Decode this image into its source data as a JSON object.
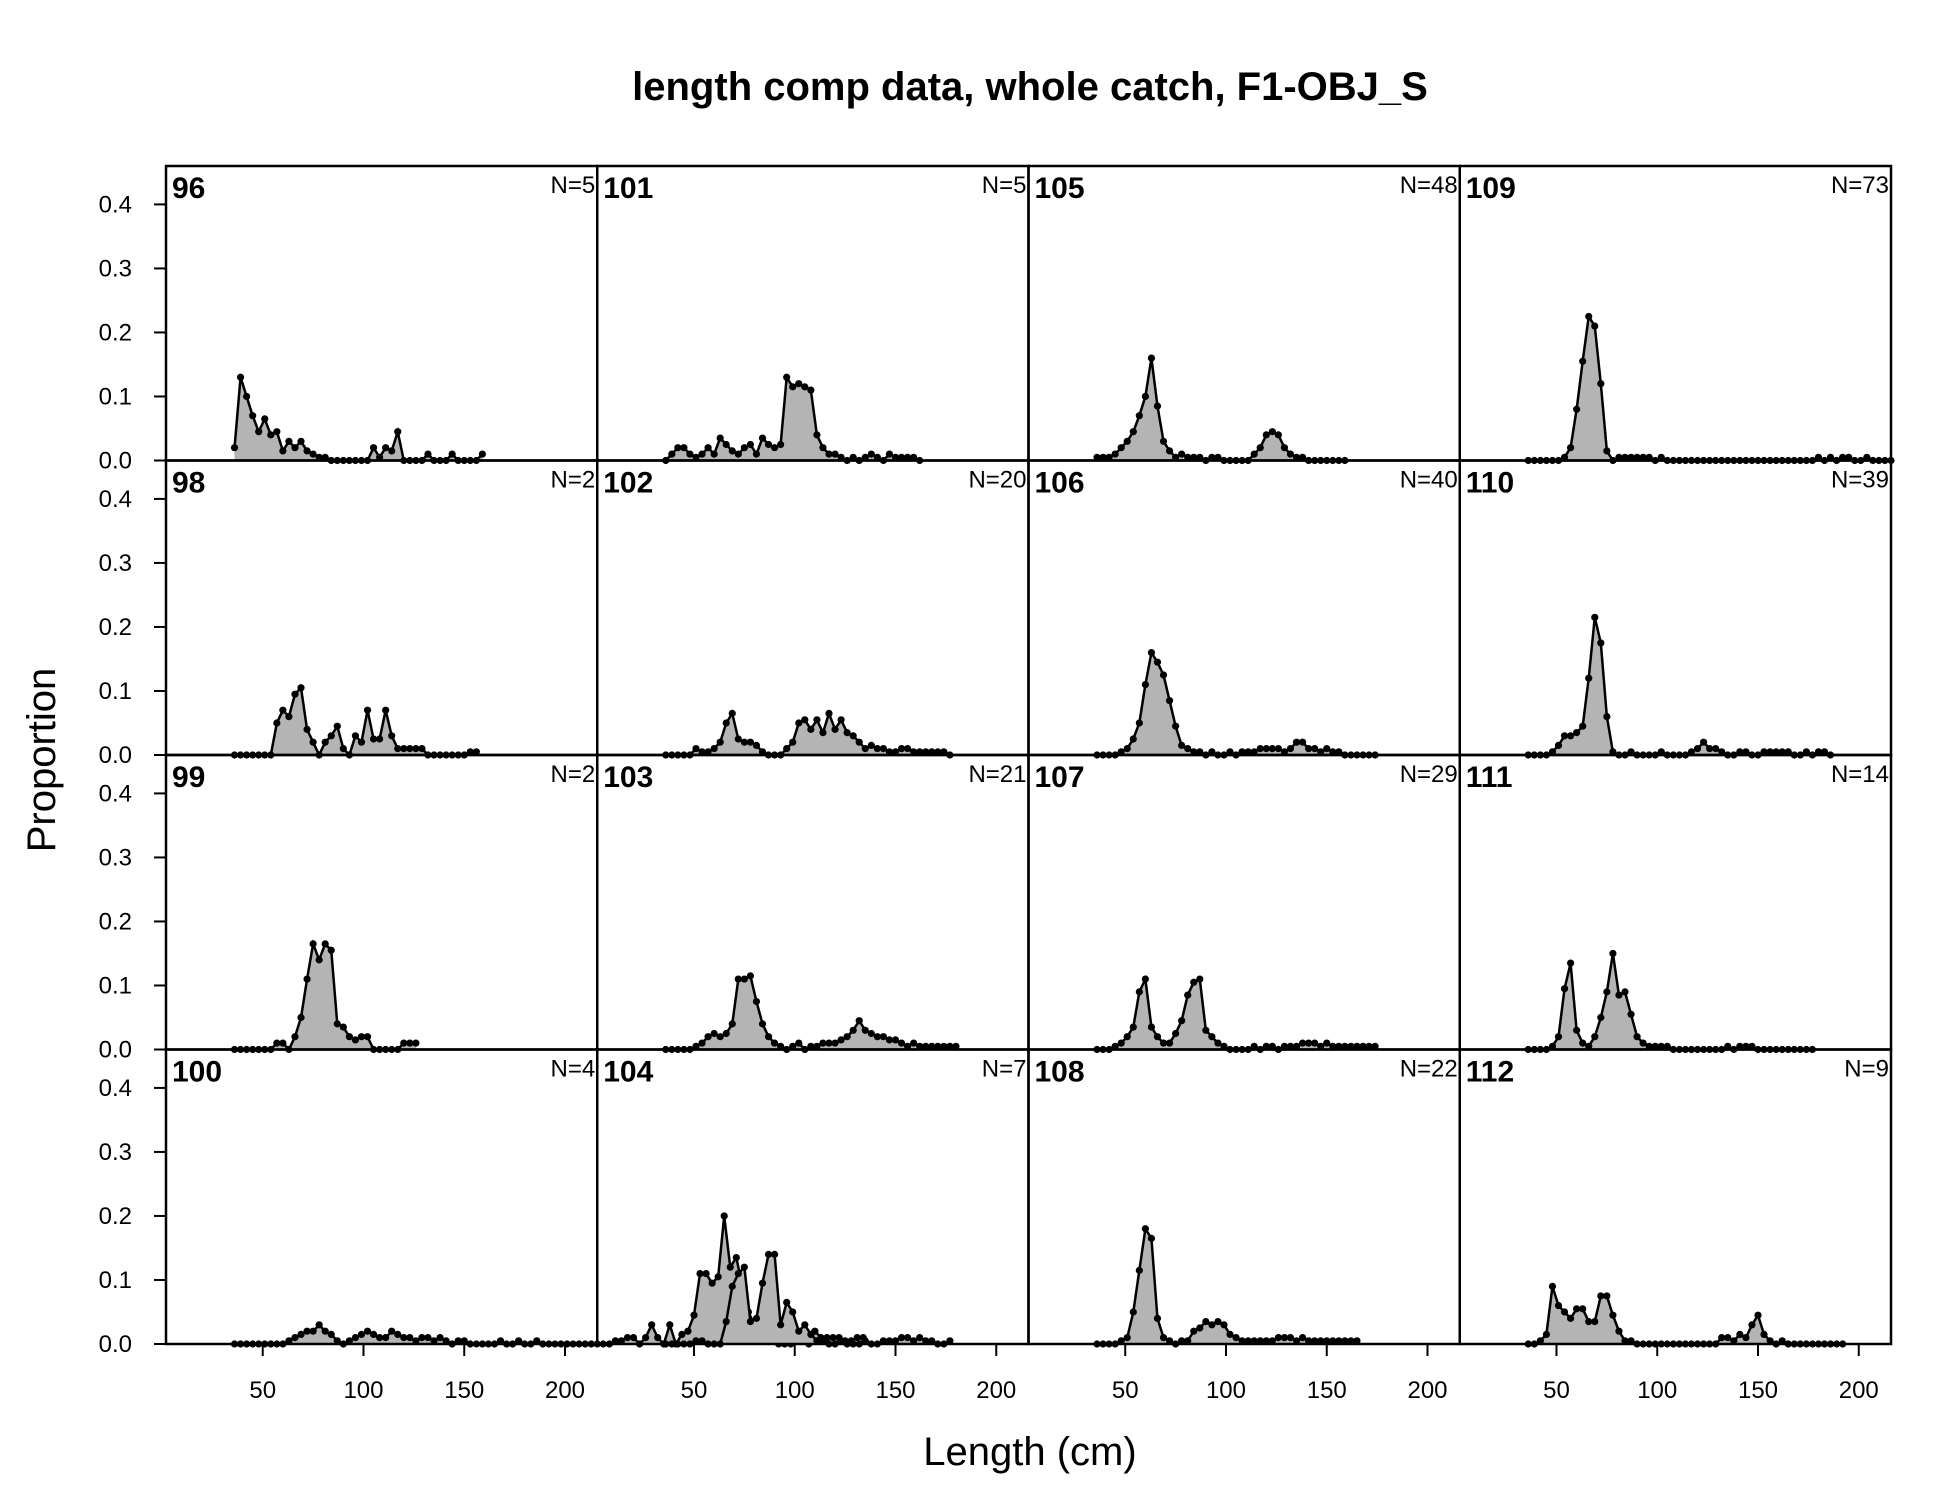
{
  "chart_data": {
    "type": "area",
    "title": "length comp data, whole catch, F1-OBJ_S",
    "xlabel": "Length (cm)",
    "ylabel": "Proportion",
    "xticks": [
      50,
      100,
      150,
      200
    ],
    "yticks": [
      "0.0",
      "0.1",
      "0.2",
      "0.3",
      "0.4"
    ],
    "xlim": [
      2,
      216
    ],
    "ylim": [
      0,
      0.46
    ],
    "bin_start": 36,
    "bin_width": 3,
    "grid": false,
    "panels": [
      {
        "label": "96",
        "n": "N=5",
        "values": [
          0.02,
          0.13,
          0.1,
          0.07,
          0.045,
          0.065,
          0.04,
          0.045,
          0.015,
          0.03,
          0.02,
          0.03,
          0.015,
          0.01,
          0.005,
          0.005,
          0,
          0,
          0,
          0,
          0,
          0,
          0,
          0.02,
          0.005,
          0.02,
          0.015,
          0.045,
          0,
          0,
          0,
          0,
          0.01,
          0,
          0,
          0,
          0.01,
          0,
          0,
          0,
          0,
          0.01
        ]
      },
      {
        "label": "98",
        "n": "N=2",
        "values": [
          0,
          0,
          0,
          0,
          0,
          0,
          0,
          0.05,
          0.07,
          0.06,
          0.095,
          0.105,
          0.04,
          0.02,
          0,
          0.02,
          0.03,
          0.045,
          0.01,
          0,
          0.03,
          0.02,
          0.07,
          0.025,
          0.025,
          0.07,
          0.03,
          0.01,
          0.01,
          0.01,
          0.01,
          0.01,
          0,
          0,
          0,
          0,
          0,
          0,
          0,
          0.005,
          0.005
        ]
      },
      {
        "label": "99",
        "n": "N=2",
        "values": [
          0,
          0,
          0,
          0,
          0,
          0,
          0,
          0.01,
          0.01,
          0,
          0.02,
          0.05,
          0.11,
          0.165,
          0.14,
          0.165,
          0.155,
          0.04,
          0.035,
          0.02,
          0.015,
          0.02,
          0.02,
          0,
          0,
          0,
          0,
          0,
          0.01,
          0.01,
          0.01
        ]
      },
      {
        "label": "100",
        "n": "N=4",
        "values": [
          0,
          0,
          0,
          0,
          0,
          0,
          0,
          0,
          0,
          0.005,
          0.01,
          0.015,
          0.02,
          0.02,
          0.03,
          0.02,
          0.015,
          0.005,
          0,
          0.005,
          0.01,
          0.015,
          0.02,
          0.015,
          0.01,
          0.01,
          0.02,
          0.015,
          0.01,
          0.01,
          0.005,
          0.01,
          0.01,
          0.005,
          0.01,
          0.005,
          0,
          0.005,
          0.005,
          0,
          0,
          0,
          0,
          0,
          0.005,
          0,
          0,
          0.005,
          0,
          0,
          0.005,
          0,
          0,
          0,
          0,
          0,
          0,
          0,
          0,
          0,
          0,
          0,
          0,
          0.005,
          0.005,
          0.01,
          0.01,
          0,
          0.01,
          0.03,
          0.01,
          0,
          0.03,
          0,
          0.015,
          0.02,
          0.045,
          0.11,
          0.11,
          0.095,
          0.105,
          0.2,
          0.12,
          0.135,
          0.09,
          0.05,
          0.03,
          0.01,
          0.02,
          0.005,
          0,
          0,
          0,
          0.005,
          0.005,
          0,
          0.02,
          0.01,
          0.01,
          0.01,
          0.01,
          0.005,
          0.005,
          0.01,
          0.01
        ]
      },
      {
        "label": "101",
        "n": "N=5",
        "values": [
          0,
          0.01,
          0.02,
          0.02,
          0.01,
          0.005,
          0.01,
          0.02,
          0.01,
          0.035,
          0.025,
          0.015,
          0.01,
          0.02,
          0.025,
          0.01,
          0.035,
          0.025,
          0.02,
          0.025,
          0.13,
          0.115,
          0.12,
          0.115,
          0.11,
          0.04,
          0.02,
          0.01,
          0.01,
          0.005,
          0,
          0.005,
          0,
          0.005,
          0.01,
          0.005,
          0,
          0.01,
          0.005,
          0.005,
          0.005,
          0.005,
          0
        ]
      },
      {
        "label": "102",
        "n": "N=20",
        "values": [
          0,
          0,
          0,
          0,
          0,
          0.01,
          0.005,
          0.005,
          0.01,
          0.02,
          0.05,
          0.065,
          0.025,
          0.02,
          0.02,
          0.015,
          0.005,
          0,
          0,
          0,
          0.01,
          0.02,
          0.05,
          0.055,
          0.04,
          0.055,
          0.035,
          0.065,
          0.04,
          0.055,
          0.035,
          0.03,
          0.02,
          0.01,
          0.015,
          0.01,
          0.01,
          0.005,
          0.005,
          0.01,
          0.01,
          0.005,
          0.005,
          0.005,
          0.005,
          0.005,
          0.005,
          0
        ]
      },
      {
        "label": "103",
        "n": "N=21",
        "values": [
          0,
          0,
          0,
          0,
          0,
          0.005,
          0.01,
          0.02,
          0.025,
          0.02,
          0.025,
          0.04,
          0.11,
          0.11,
          0.115,
          0.075,
          0.04,
          0.02,
          0.01,
          0.005,
          0,
          0.005,
          0.01,
          0,
          0.005,
          0.005,
          0.01,
          0.01,
          0.01,
          0.015,
          0.02,
          0.03,
          0.045,
          0.03,
          0.025,
          0.02,
          0.02,
          0.015,
          0.015,
          0.01,
          0.005,
          0.01,
          0.005,
          0.005,
          0.005,
          0.005,
          0.005,
          0.005,
          0.005
        ]
      },
      {
        "label": "104",
        "n": "N=7",
        "values": [
          0,
          0,
          0,
          0,
          0,
          0.005,
          0.005,
          0,
          0,
          0,
          0.035,
          0.09,
          0.11,
          0.12,
          0.035,
          0.04,
          0.095,
          0.14,
          0.14,
          0.03,
          0.065,
          0.05,
          0.02,
          0.03,
          0.015,
          0.005,
          0.005,
          0,
          0,
          0.005,
          0,
          0,
          0,
          0.005,
          0,
          0,
          0.005,
          0.005,
          0.005,
          0.01,
          0.01,
          0.005,
          0.01,
          0.005,
          0.005,
          0,
          0,
          0.005
        ]
      },
      {
        "label": "105",
        "n": "N=48",
        "values": [
          0.005,
          0.005,
          0.005,
          0.01,
          0.02,
          0.03,
          0.045,
          0.07,
          0.1,
          0.16,
          0.085,
          0.03,
          0.015,
          0.005,
          0.01,
          0.005,
          0.005,
          0.005,
          0,
          0.005,
          0.005,
          0,
          0,
          0,
          0,
          0,
          0.01,
          0.02,
          0.04,
          0.045,
          0.04,
          0.02,
          0.01,
          0.005,
          0.005,
          0,
          0,
          0,
          0,
          0,
          0,
          0
        ]
      },
      {
        "label": "106",
        "n": "N=40",
        "values": [
          0,
          0,
          0,
          0,
          0.005,
          0.01,
          0.025,
          0.05,
          0.11,
          0.16,
          0.145,
          0.125,
          0.085,
          0.045,
          0.015,
          0.01,
          0.005,
          0.005,
          0,
          0.005,
          0,
          0,
          0.005,
          0,
          0.005,
          0.005,
          0.005,
          0.01,
          0.01,
          0.01,
          0.01,
          0.005,
          0.01,
          0.02,
          0.02,
          0.01,
          0.01,
          0.005,
          0.01,
          0.005,
          0.005,
          0,
          0,
          0,
          0,
          0,
          0
        ]
      },
      {
        "label": "107",
        "n": "N=29",
        "values": [
          0,
          0,
          0,
          0.005,
          0.01,
          0.02,
          0.035,
          0.09,
          0.11,
          0.035,
          0.02,
          0.01,
          0.01,
          0.025,
          0.045,
          0.085,
          0.105,
          0.11,
          0.03,
          0.02,
          0.01,
          0.005,
          0,
          0,
          0,
          0,
          0.005,
          0,
          0.005,
          0.005,
          0,
          0.005,
          0.005,
          0.005,
          0.01,
          0.01,
          0.01,
          0.005,
          0.01,
          0.005,
          0.005,
          0.005,
          0.005,
          0.005,
          0.005,
          0.005,
          0.005
        ]
      },
      {
        "label": "108",
        "n": "N=22",
        "values": [
          0,
          0,
          0,
          0,
          0.005,
          0.01,
          0.05,
          0.115,
          0.18,
          0.165,
          0.04,
          0.01,
          0.005,
          0,
          0.005,
          0.005,
          0.02,
          0.025,
          0.035,
          0.03,
          0.035,
          0.03,
          0.015,
          0.01,
          0.005,
          0.005,
          0.005,
          0.005,
          0.005,
          0.005,
          0.01,
          0.01,
          0.01,
          0.005,
          0.01,
          0.005,
          0.005,
          0.005,
          0.005,
          0.005,
          0.005,
          0.005,
          0.005,
          0.005
        ]
      },
      {
        "label": "109",
        "n": "N=73",
        "values": [
          0,
          0,
          0,
          0,
          0,
          0,
          0.005,
          0.02,
          0.08,
          0.155,
          0.225,
          0.21,
          0.12,
          0.015,
          0,
          0.005,
          0.005,
          0.005,
          0.005,
          0.005,
          0.005,
          0,
          0.005,
          0,
          0,
          0,
          0,
          0,
          0,
          0,
          0,
          0,
          0,
          0,
          0,
          0,
          0,
          0,
          0,
          0,
          0,
          0,
          0,
          0,
          0,
          0,
          0,
          0,
          0.005,
          0,
          0.005,
          0,
          0.005,
          0.005,
          0,
          0,
          0.005,
          0,
          0,
          0,
          0
        ]
      },
      {
        "label": "110",
        "n": "N=39",
        "values": [
          0,
          0,
          0,
          0,
          0.005,
          0.015,
          0.03,
          0.03,
          0.035,
          0.045,
          0.12,
          0.215,
          0.175,
          0.06,
          0.005,
          0,
          0,
          0.005,
          0,
          0,
          0,
          0,
          0.005,
          0,
          0,
          0,
          0,
          0.005,
          0.01,
          0.02,
          0.01,
          0.01,
          0.005,
          0,
          0,
          0.005,
          0.005,
          0,
          0,
          0.005,
          0.005,
          0.005,
          0.005,
          0.005,
          0,
          0,
          0.005,
          0,
          0.005,
          0.005,
          0
        ]
      },
      {
        "label": "111",
        "n": "N=14",
        "values": [
          0,
          0,
          0,
          0,
          0.005,
          0.02,
          0.095,
          0.135,
          0.03,
          0.01,
          0.005,
          0.02,
          0.05,
          0.09,
          0.15,
          0.085,
          0.09,
          0.055,
          0.02,
          0.01,
          0.005,
          0.005,
          0.005,
          0.005,
          0,
          0,
          0,
          0,
          0,
          0,
          0,
          0,
          0,
          0.005,
          0,
          0.005,
          0.005,
          0.005,
          0,
          0,
          0,
          0,
          0,
          0,
          0,
          0,
          0,
          0
        ]
      },
      {
        "label": "112",
        "n": "N=9",
        "values": [
          0,
          0,
          0.005,
          0.015,
          0.09,
          0.06,
          0.05,
          0.04,
          0.055,
          0.055,
          0.035,
          0.035,
          0.075,
          0.075,
          0.045,
          0.02,
          0.005,
          0.005,
          0,
          0,
          0,
          0,
          0,
          0,
          0,
          0,
          0,
          0,
          0,
          0,
          0,
          0,
          0.01,
          0.01,
          0.005,
          0.015,
          0.01,
          0.03,
          0.045,
          0.015,
          0.005,
          0,
          0.005,
          0,
          0,
          0,
          0,
          0,
          0,
          0,
          0,
          0,
          0
        ]
      }
    ]
  }
}
